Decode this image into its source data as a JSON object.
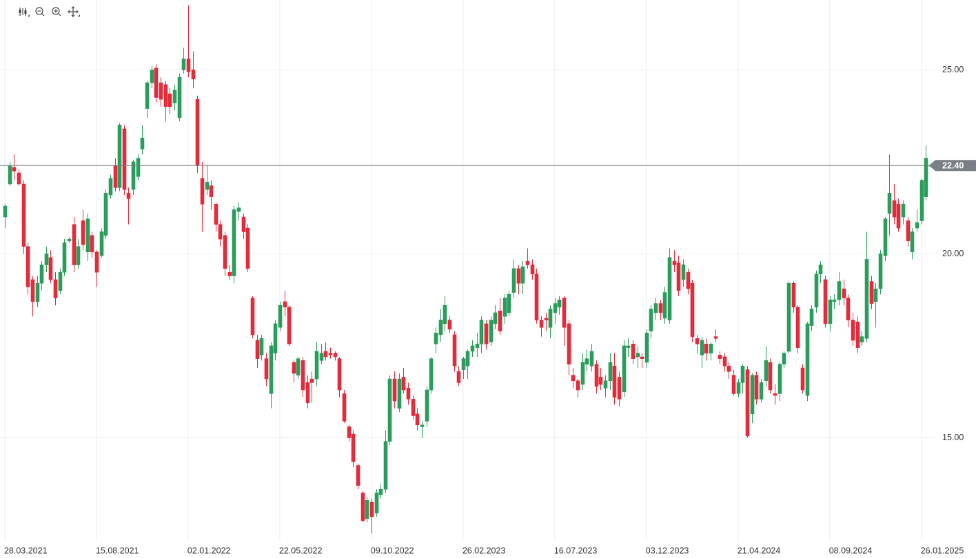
{
  "chart_data": {
    "type": "candlestick",
    "up_color": "#2a9d5c",
    "down_color": "#e32b3c",
    "grid": true,
    "ylim": [
      12.2,
      26.9
    ],
    "yticks": [
      {
        "value": 15,
        "label": "15.00"
      },
      {
        "value": 20,
        "label": "20.00"
      },
      {
        "value": 25,
        "label": "25.00"
      }
    ],
    "xlim": [
      -1.05,
      202.9
    ],
    "xticks": [
      {
        "value": 0,
        "label": "28.03.2021"
      },
      {
        "value": 20,
        "label": "15.08.2021"
      },
      {
        "value": 40,
        "label": "02.01.2022"
      },
      {
        "value": 60,
        "label": "22.05.2022"
      },
      {
        "value": 80,
        "label": "09.10.2022"
      },
      {
        "value": 100,
        "label": "26.02.2023"
      },
      {
        "value": 120,
        "label": "16.07.2023"
      },
      {
        "value": 140,
        "label": "03.12.2023"
      },
      {
        "value": 160,
        "label": "21.04.2024"
      },
      {
        "value": 180,
        "label": "08.09.2024"
      },
      {
        "value": 200,
        "label": "26.01.2025"
      }
    ],
    "last_price": {
      "value": 22.4,
      "label": "22.40"
    },
    "candles": [
      [
        21.0,
        21.35,
        20.7,
        21.3
      ],
      [
        21.9,
        22.5,
        21.85,
        22.4
      ],
      [
        22.35,
        22.7,
        22.0,
        22.25
      ],
      [
        22.2,
        22.3,
        21.85,
        21.9
      ],
      [
        21.9,
        22.0,
        20.0,
        20.2
      ],
      [
        20.2,
        20.3,
        18.9,
        19.1
      ],
      [
        19.3,
        19.4,
        18.3,
        18.7
      ],
      [
        18.7,
        19.4,
        18.55,
        19.2
      ],
      [
        19.2,
        19.8,
        19.0,
        19.7
      ],
      [
        19.7,
        20.2,
        19.5,
        20.0
      ],
      [
        19.9,
        20.1,
        19.2,
        19.3
      ],
      [
        19.3,
        19.5,
        18.6,
        18.8
      ],
      [
        19.0,
        19.6,
        18.9,
        19.5
      ],
      [
        19.5,
        20.4,
        19.4,
        20.3
      ],
      [
        20.35,
        20.45,
        20.3,
        20.4
      ],
      [
        20.8,
        21.0,
        19.5,
        19.7
      ],
      [
        19.7,
        20.4,
        19.6,
        20.2
      ],
      [
        20.9,
        21.2,
        20.1,
        20.25
      ],
      [
        20.05,
        21.1,
        19.8,
        20.95
      ],
      [
        20.5,
        20.6,
        19.9,
        20.05
      ],
      [
        20.05,
        20.1,
        19.1,
        19.5
      ],
      [
        19.95,
        20.7,
        19.9,
        20.6
      ],
      [
        20.5,
        21.75,
        20.4,
        21.65
      ],
      [
        21.6,
        22.15,
        21.5,
        22.05
      ],
      [
        22.4,
        22.6,
        21.7,
        21.8
      ],
      [
        21.8,
        23.55,
        21.7,
        23.5
      ],
      [
        23.4,
        23.5,
        21.6,
        21.75
      ],
      [
        21.65,
        21.8,
        20.8,
        21.5
      ],
      [
        21.75,
        22.55,
        21.6,
        22.5
      ],
      [
        22.1,
        22.7,
        22.0,
        22.6
      ],
      [
        22.85,
        23.5,
        22.7,
        23.15
      ],
      [
        23.95,
        24.7,
        23.7,
        24.65
      ],
      [
        24.65,
        25.1,
        24.5,
        25.0
      ],
      [
        25.05,
        25.15,
        24.1,
        24.25
      ],
      [
        24.65,
        24.8,
        24.0,
        24.2
      ],
      [
        24.6,
        24.7,
        23.6,
        24.0
      ],
      [
        24.35,
        24.5,
        23.8,
        24.0
      ],
      [
        24.1,
        24.6,
        23.9,
        24.45
      ],
      [
        23.7,
        24.9,
        23.6,
        24.8
      ],
      [
        25.0,
        25.6,
        24.9,
        25.3
      ],
      [
        25.3,
        26.75,
        24.8,
        24.95
      ],
      [
        25.0,
        25.5,
        24.5,
        24.75
      ],
      [
        24.2,
        24.3,
        22.2,
        22.4
      ],
      [
        22.05,
        22.5,
        20.6,
        21.35
      ],
      [
        21.75,
        22.4,
        21.6,
        21.95
      ],
      [
        21.85,
        22.0,
        21.2,
        21.55
      ],
      [
        21.35,
        21.4,
        20.6,
        20.8
      ],
      [
        20.8,
        20.9,
        20.2,
        20.4
      ],
      [
        20.5,
        20.6,
        19.4,
        19.6
      ],
      [
        19.5,
        19.7,
        19.3,
        19.4
      ],
      [
        19.4,
        21.3,
        19.2,
        21.2
      ],
      [
        21.15,
        21.4,
        20.9,
        21.25
      ],
      [
        21.0,
        21.1,
        20.4,
        20.6
      ],
      [
        20.7,
        20.8,
        19.5,
        19.6
      ],
      [
        18.8,
        18.85,
        17.7,
        17.8
      ],
      [
        17.65,
        17.8,
        16.9,
        17.15
      ],
      [
        17.25,
        17.8,
        17.1,
        17.7
      ],
      [
        17.15,
        17.3,
        16.4,
        16.6
      ],
      [
        16.2,
        17.6,
        15.8,
        17.5
      ],
      [
        17.3,
        18.2,
        17.1,
        18.1
      ],
      [
        18.0,
        18.7,
        17.9,
        18.6
      ],
      [
        18.7,
        19.0,
        18.3,
        18.55
      ],
      [
        18.55,
        18.6,
        17.5,
        17.55
      ],
      [
        17.05,
        17.1,
        16.5,
        16.75
      ],
      [
        16.7,
        17.2,
        16.6,
        17.15
      ],
      [
        17.1,
        17.2,
        16.1,
        16.3
      ],
      [
        16.5,
        16.7,
        15.8,
        15.95
      ],
      [
        16.6,
        16.8,
        15.95,
        16.5
      ],
      [
        16.6,
        17.6,
        16.4,
        17.35
      ],
      [
        17.1,
        17.55,
        17.0,
        17.3
      ],
      [
        17.35,
        17.6,
        17.1,
        17.2
      ],
      [
        17.3,
        17.45,
        17.15,
        17.25
      ],
      [
        17.3,
        17.35,
        17.1,
        17.2
      ],
      [
        17.15,
        17.2,
        16.1,
        16.3
      ],
      [
        16.2,
        16.3,
        15.4,
        15.45
      ],
      [
        15.3,
        15.35,
        14.9,
        15.0
      ],
      [
        15.1,
        15.2,
        14.2,
        14.35
      ],
      [
        14.25,
        14.3,
        13.6,
        13.7
      ],
      [
        13.5,
        13.55,
        12.7,
        12.75
      ],
      [
        12.8,
        13.4,
        12.7,
        13.3
      ],
      [
        13.25,
        13.35,
        12.4,
        12.85
      ],
      [
        12.95,
        13.6,
        12.85,
        13.5
      ],
      [
        13.45,
        13.75,
        13.35,
        13.6
      ],
      [
        13.6,
        15.2,
        13.5,
        14.9
      ],
      [
        14.9,
        16.7,
        14.8,
        16.6
      ],
      [
        16.6,
        16.8,
        15.8,
        16.0
      ],
      [
        15.8,
        16.75,
        15.7,
        16.6
      ],
      [
        16.65,
        16.9,
        16.2,
        16.3
      ],
      [
        16.35,
        16.5,
        15.9,
        16.05
      ],
      [
        16.05,
        16.15,
        15.5,
        15.6
      ],
      [
        15.65,
        15.8,
        15.2,
        15.35
      ],
      [
        15.3,
        15.45,
        15.0,
        15.35
      ],
      [
        15.45,
        16.4,
        15.3,
        16.3
      ],
      [
        16.3,
        17.2,
        16.2,
        17.15
      ],
      [
        17.55,
        18.0,
        17.3,
        17.85
      ],
      [
        17.8,
        18.5,
        17.6,
        18.2
      ],
      [
        18.1,
        18.85,
        17.9,
        18.6
      ],
      [
        18.2,
        18.3,
        17.85,
        17.95
      ],
      [
        17.8,
        17.9,
        16.8,
        16.95
      ],
      [
        16.8,
        16.95,
        16.4,
        16.5
      ],
      [
        16.85,
        17.2,
        16.6,
        17.15
      ],
      [
        16.95,
        17.4,
        16.6,
        17.35
      ],
      [
        17.35,
        17.65,
        17.2,
        17.5
      ],
      [
        17.45,
        17.85,
        17.2,
        17.55
      ],
      [
        17.55,
        18.3,
        17.3,
        18.2
      ],
      [
        18.1,
        18.2,
        17.4,
        17.55
      ],
      [
        17.6,
        18.3,
        17.5,
        18.2
      ],
      [
        18.1,
        18.6,
        17.95,
        18.4
      ],
      [
        18.45,
        18.8,
        17.8,
        17.9
      ],
      [
        18.3,
        18.9,
        18.1,
        18.8
      ],
      [
        18.4,
        19.0,
        18.3,
        18.9
      ],
      [
        18.95,
        19.85,
        18.8,
        19.6
      ],
      [
        19.6,
        19.7,
        18.9,
        19.2
      ],
      [
        19.2,
        19.8,
        18.9,
        19.65
      ],
      [
        19.8,
        20.15,
        19.6,
        19.7
      ],
      [
        19.7,
        19.85,
        19.3,
        19.45
      ],
      [
        19.45,
        19.6,
        18.1,
        18.2
      ],
      [
        18.2,
        18.3,
        17.75,
        18.0
      ],
      [
        18.25,
        18.4,
        17.9,
        18.2
      ],
      [
        18.0,
        18.6,
        17.7,
        18.5
      ],
      [
        18.4,
        18.8,
        18.1,
        18.65
      ],
      [
        18.55,
        18.85,
        18.35,
        18.75
      ],
      [
        18.8,
        18.85,
        17.5,
        18.0
      ],
      [
        18.1,
        18.2,
        16.7,
        17.0
      ],
      [
        16.7,
        16.9,
        16.35,
        16.55
      ],
      [
        16.55,
        16.6,
        16.1,
        16.3
      ],
      [
        16.45,
        17.3,
        16.3,
        17.05
      ],
      [
        17.0,
        17.4,
        16.8,
        17.15
      ],
      [
        16.95,
        17.55,
        16.8,
        17.35
      ],
      [
        17.0,
        17.1,
        16.2,
        16.4
      ],
      [
        16.65,
        16.9,
        16.3,
        16.45
      ],
      [
        16.35,
        16.7,
        16.1,
        16.55
      ],
      [
        16.55,
        17.3,
        16.3,
        17.05
      ],
      [
        16.95,
        17.3,
        15.9,
        16.1
      ],
      [
        16.65,
        16.8,
        15.85,
        16.05
      ],
      [
        16.25,
        17.65,
        16.1,
        17.5
      ],
      [
        17.45,
        17.7,
        17.2,
        17.5
      ],
      [
        17.55,
        17.65,
        17.0,
        17.15
      ],
      [
        17.2,
        17.5,
        16.9,
        17.3
      ],
      [
        17.2,
        17.3,
        16.9,
        17.15
      ],
      [
        17.05,
        17.95,
        16.9,
        17.85
      ],
      [
        17.9,
        18.6,
        17.7,
        18.5
      ],
      [
        18.4,
        18.8,
        18.2,
        18.65
      ],
      [
        18.65,
        18.75,
        18.2,
        18.4
      ],
      [
        18.25,
        19.1,
        18.1,
        18.95
      ],
      [
        18.2,
        20.15,
        18.1,
        19.9
      ],
      [
        19.8,
        20.1,
        19.5,
        19.7
      ],
      [
        19.75,
        19.95,
        18.85,
        19.0
      ],
      [
        19.3,
        19.85,
        19.1,
        19.7
      ],
      [
        19.5,
        19.6,
        18.9,
        19.05
      ],
      [
        19.2,
        19.3,
        17.6,
        17.75
      ],
      [
        17.7,
        17.8,
        17.3,
        17.55
      ],
      [
        17.25,
        17.75,
        16.9,
        17.65
      ],
      [
        17.55,
        17.7,
        17.1,
        17.3
      ],
      [
        17.3,
        17.6,
        17.1,
        17.55
      ],
      [
        17.75,
        17.95,
        17.6,
        17.7
      ],
      [
        17.25,
        17.35,
        17.0,
        17.15
      ],
      [
        17.2,
        17.3,
        16.8,
        16.95
      ],
      [
        16.95,
        17.05,
        16.6,
        16.8
      ],
      [
        16.7,
        16.85,
        16.15,
        16.2
      ],
      [
        16.2,
        16.6,
        16.1,
        16.5
      ],
      [
        16.5,
        17.0,
        16.2,
        16.95
      ],
      [
        16.85,
        16.95,
        15.0,
        15.05
      ],
      [
        15.65,
        16.75,
        15.4,
        16.7
      ],
      [
        16.7,
        16.8,
        15.9,
        16.05
      ],
      [
        16.05,
        16.6,
        15.95,
        16.5
      ],
      [
        16.55,
        17.5,
        16.4,
        17.1
      ],
      [
        17.05,
        17.15,
        16.2,
        16.3
      ],
      [
        16.2,
        16.45,
        15.9,
        16.15
      ],
      [
        16.2,
        17.05,
        16.0,
        17.0
      ],
      [
        17.0,
        17.35,
        16.9,
        17.3
      ],
      [
        17.35,
        19.25,
        17.3,
        19.2
      ],
      [
        19.2,
        19.25,
        18.4,
        18.55
      ],
      [
        18.55,
        18.6,
        17.3,
        17.45
      ],
      [
        16.9,
        17.0,
        16.2,
        16.3
      ],
      [
        16.15,
        18.15,
        16.0,
        18.1
      ],
      [
        18.05,
        18.6,
        17.9,
        18.5
      ],
      [
        18.55,
        19.55,
        18.4,
        19.45
      ],
      [
        19.45,
        19.8,
        19.2,
        19.7
      ],
      [
        19.3,
        19.4,
        18.0,
        18.1
      ],
      [
        18.1,
        18.85,
        17.9,
        18.75
      ],
      [
        18.7,
        18.9,
        18.5,
        18.75
      ],
      [
        18.75,
        19.5,
        18.6,
        19.25
      ],
      [
        19.05,
        19.3,
        18.6,
        18.8
      ],
      [
        18.8,
        18.9,
        18.0,
        18.2
      ],
      [
        18.2,
        18.4,
        17.5,
        17.65
      ],
      [
        18.15,
        18.3,
        17.3,
        17.45
      ],
      [
        17.6,
        17.9,
        17.5,
        17.75
      ],
      [
        17.7,
        20.6,
        17.6,
        19.85
      ],
      [
        19.25,
        19.4,
        18.5,
        18.65
      ],
      [
        18.7,
        19.2,
        18.0,
        19.05
      ],
      [
        19.05,
        20.1,
        18.9,
        20.0
      ],
      [
        19.95,
        21.0,
        19.8,
        20.95
      ],
      [
        21.1,
        22.7,
        20.5,
        21.65
      ],
      [
        21.45,
        21.9,
        20.8,
        21.0
      ],
      [
        21.35,
        21.5,
        20.6,
        20.7
      ],
      [
        21.0,
        21.45,
        20.8,
        21.35
      ],
      [
        20.9,
        21.0,
        20.2,
        20.35
      ],
      [
        20.05,
        20.7,
        19.85,
        20.6
      ],
      [
        20.7,
        21.2,
        20.6,
        20.85
      ],
      [
        20.9,
        22.05,
        20.8,
        22.0
      ],
      [
        21.55,
        22.95,
        21.45,
        22.6
      ],
      [
        22.38,
        22.45,
        22.35,
        22.4
      ]
    ]
  }
}
